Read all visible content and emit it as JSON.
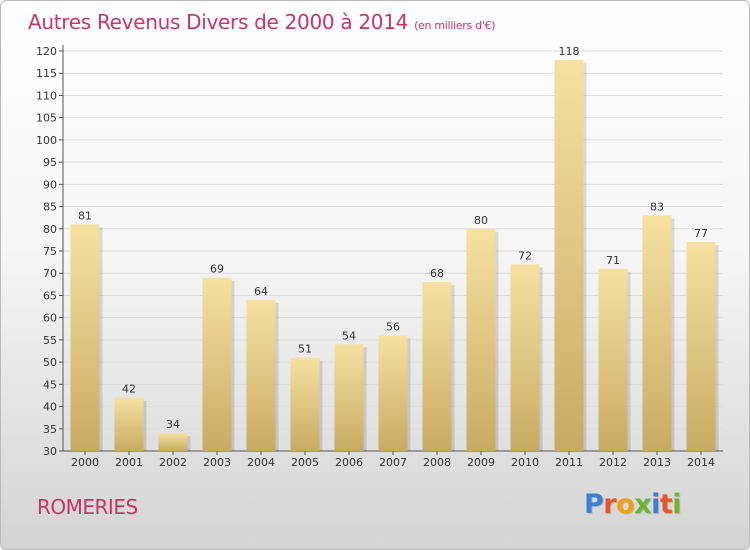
{
  "header": {
    "title": "Autres Revenus Divers de 2000 à 2014",
    "subtitle": "(en milliers d'€)"
  },
  "footer": {
    "place": "ROMERIES",
    "logo": [
      "P",
      "r",
      "o",
      "x",
      "i",
      "t",
      "i"
    ],
    "logo_colors": [
      "#3a7fd5",
      "#e8552a",
      "#f2a012",
      "#6cb52d",
      "#3a7fd5",
      "#e8552a",
      "#6cb52d"
    ]
  },
  "colors": {
    "title": "#cc3366",
    "bar_light": "#f6e1a0",
    "bar_dark": "#c8ab62",
    "grid": "#dddddd"
  },
  "chart_data": {
    "type": "bar",
    "title": "Autres Revenus Divers de 2000 à 2014",
    "subtitle": "(en milliers d'€)",
    "categories": [
      "2000",
      "2001",
      "2002",
      "2003",
      "2004",
      "2005",
      "2006",
      "2007",
      "2008",
      "2009",
      "2010",
      "2011",
      "2012",
      "2013",
      "2014"
    ],
    "values": [
      81,
      42,
      34,
      69,
      64,
      51,
      54,
      56,
      68,
      80,
      72,
      118,
      71,
      83,
      77
    ],
    "ylim": [
      30,
      120
    ],
    "yticks": [
      30,
      35,
      40,
      45,
      50,
      55,
      60,
      65,
      70,
      75,
      80,
      85,
      90,
      95,
      100,
      105,
      110,
      115,
      120
    ],
    "grid": true,
    "data_labels": true
  }
}
